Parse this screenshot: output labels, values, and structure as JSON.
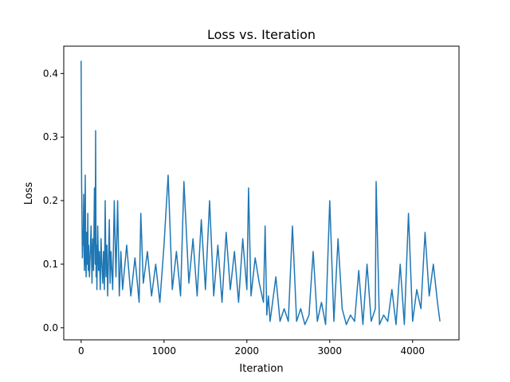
{
  "chart_data": {
    "type": "line",
    "title": "Loss vs. Iteration",
    "xlabel": "Iteration",
    "ylabel": "Loss",
    "xlim": [
      -210,
      4560
    ],
    "ylim": [
      -0.019,
      0.443
    ],
    "xticks": [
      0,
      1000,
      2000,
      3000,
      4000
    ],
    "yticks": [
      0.0,
      0.1,
      0.2,
      0.3,
      0.4
    ],
    "xtick_labels": [
      "0",
      "1000",
      "2000",
      "3000",
      "4000"
    ],
    "ytick_labels": [
      "0.0",
      "0.1",
      "0.2",
      "0.3",
      "0.4"
    ],
    "grid": false,
    "series": [
      {
        "color": "#1f77b4",
        "x": [
          0,
          5,
          10,
          15,
          20,
          25,
          30,
          35,
          40,
          45,
          50,
          55,
          60,
          65,
          70,
          75,
          80,
          85,
          90,
          100,
          110,
          120,
          130,
          140,
          150,
          160,
          170,
          175,
          180,
          185,
          190,
          200,
          210,
          220,
          230,
          240,
          250,
          260,
          270,
          280,
          290,
          300,
          310,
          320,
          330,
          340,
          350,
          360,
          380,
          400,
          420,
          440,
          460,
          480,
          500,
          550,
          600,
          650,
          700,
          720,
          750,
          800,
          850,
          900,
          950,
          1000,
          1050,
          1100,
          1150,
          1200,
          1240,
          1300,
          1350,
          1400,
          1450,
          1500,
          1550,
          1600,
          1650,
          1700,
          1750,
          1800,
          1850,
          1900,
          1950,
          2000,
          2020,
          2050,
          2100,
          2150,
          2200,
          2220,
          2240,
          2260,
          2280,
          2300,
          2350,
          2400,
          2450,
          2500,
          2550,
          2600,
          2650,
          2700,
          2750,
          2800,
          2850,
          2900,
          2950,
          3000,
          3050,
          3100,
          3150,
          3200,
          3250,
          3300,
          3350,
          3400,
          3450,
          3500,
          3550,
          3560,
          3600,
          3650,
          3700,
          3750,
          3800,
          3850,
          3900,
          3950,
          4000,
          4050,
          4100,
          4150,
          4200,
          4250,
          4300,
          4330
        ],
        "values": [
          0.42,
          0.23,
          0.17,
          0.11,
          0.15,
          0.13,
          0.21,
          0.12,
          0.09,
          0.16,
          0.24,
          0.1,
          0.08,
          0.15,
          0.14,
          0.1,
          0.18,
          0.09,
          0.13,
          0.08,
          0.12,
          0.16,
          0.07,
          0.14,
          0.09,
          0.22,
          0.1,
          0.31,
          0.08,
          0.13,
          0.06,
          0.16,
          0.09,
          0.12,
          0.06,
          0.14,
          0.1,
          0.07,
          0.12,
          0.06,
          0.2,
          0.08,
          0.13,
          0.05,
          0.11,
          0.17,
          0.07,
          0.12,
          0.06,
          0.2,
          0.08,
          0.2,
          0.05,
          0.12,
          0.06,
          0.13,
          0.05,
          0.11,
          0.04,
          0.18,
          0.07,
          0.12,
          0.05,
          0.1,
          0.04,
          0.13,
          0.24,
          0.06,
          0.12,
          0.05,
          0.23,
          0.07,
          0.14,
          0.05,
          0.17,
          0.06,
          0.2,
          0.05,
          0.13,
          0.04,
          0.15,
          0.06,
          0.12,
          0.04,
          0.14,
          0.06,
          0.22,
          0.05,
          0.11,
          0.07,
          0.04,
          0.16,
          0.02,
          0.05,
          0.01,
          0.03,
          0.08,
          0.01,
          0.03,
          0.01,
          0.16,
          0.01,
          0.03,
          0.005,
          0.02,
          0.12,
          0.01,
          0.04,
          0.005,
          0.2,
          0.01,
          0.14,
          0.03,
          0.005,
          0.02,
          0.01,
          0.09,
          0.005,
          0.1,
          0.01,
          0.03,
          0.23,
          0.005,
          0.02,
          0.01,
          0.06,
          0.005,
          0.1,
          0.005,
          0.18,
          0.01,
          0.06,
          0.03,
          0.15,
          0.05,
          0.1,
          0.04,
          0.01
        ]
      }
    ]
  }
}
